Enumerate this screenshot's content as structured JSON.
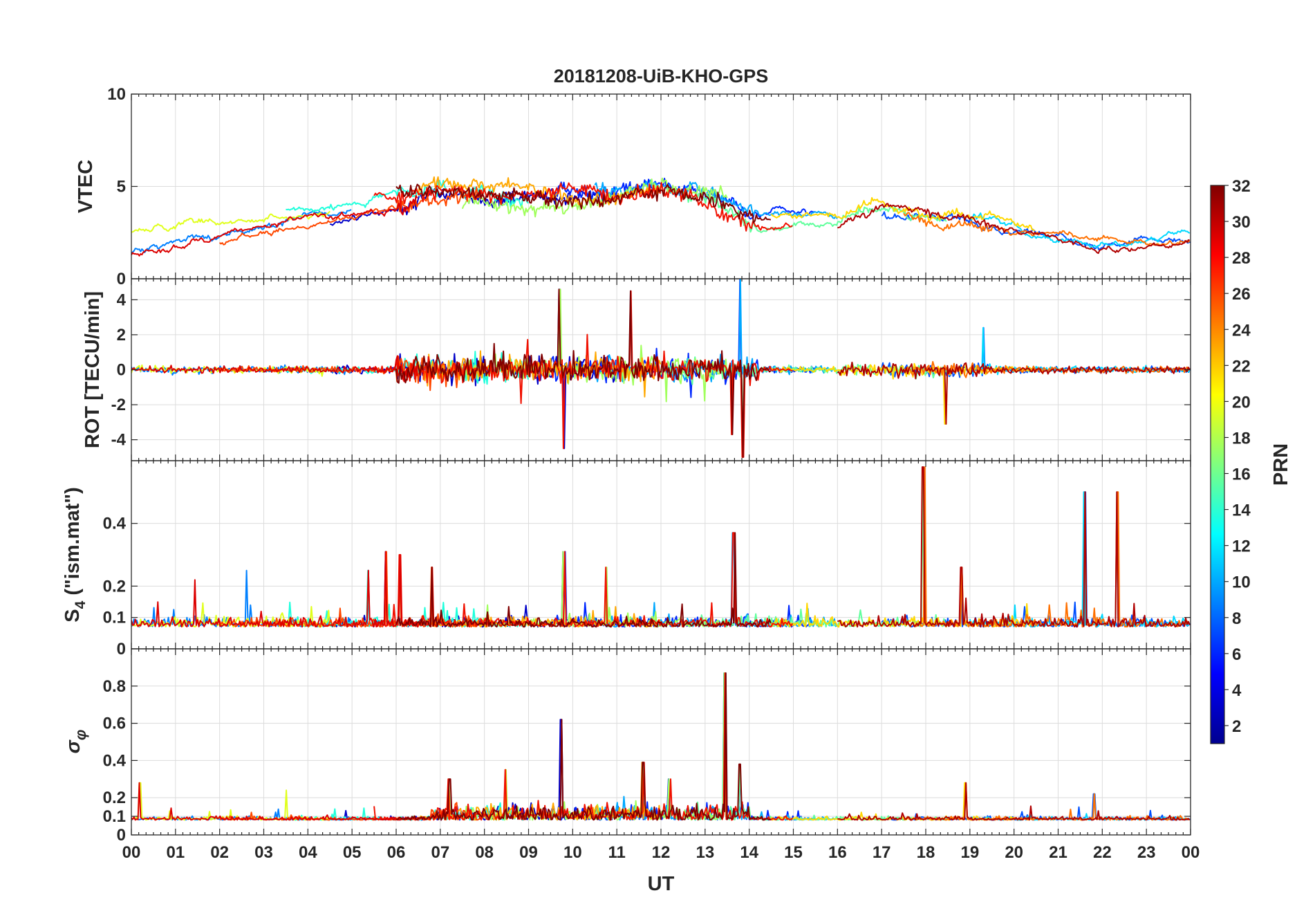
{
  "chart_data": {
    "type": "line",
    "title": "20181208-UiB-KHO-GPS",
    "xlabel": "UT",
    "x_range_hours": [
      0,
      24
    ],
    "x_tick_labels": [
      "00",
      "01",
      "02",
      "03",
      "04",
      "05",
      "06",
      "07",
      "08",
      "09",
      "10",
      "11",
      "12",
      "13",
      "14",
      "15",
      "16",
      "17",
      "18",
      "19",
      "20",
      "21",
      "22",
      "23",
      "00"
    ],
    "panels": [
      {
        "id": "vtec",
        "ylabel": "VTEC",
        "ylim": [
          0,
          10
        ],
        "y_ticks": [
          0,
          5,
          10
        ],
        "y_tick_labels": [
          "0",
          "5",
          "10"
        ],
        "grid": true,
        "description": "VTEC per satellite, typically 1-8 TECU, elevated between 06 and 14 UT",
        "series_profile_hours": [
          0,
          3,
          5,
          7,
          9,
          11,
          12,
          13,
          14,
          16,
          17,
          18,
          20,
          22,
          24
        ],
        "series_profile_values": [
          2.0,
          3.0,
          3.8,
          4.8,
          4.2,
          4.5,
          5.0,
          4.6,
          3.5,
          3.0,
          4.0,
          3.6,
          2.8,
          2.0,
          2.2
        ]
      },
      {
        "id": "rot",
        "ylabel": "ROT [TECU/min]",
        "ylim": [
          -5.2,
          5.2
        ],
        "y_ticks": [
          -4,
          -2,
          0,
          2,
          4
        ],
        "y_tick_labels": [
          "-4",
          "-2",
          "0",
          "2",
          "4"
        ],
        "grid": true,
        "description": "Rate of TEC, near 0 with bursts up to about +/-5 TECU/min between 06 and 14 UT",
        "peaks": [
          {
            "hour": 9.8,
            "value": -4.5
          },
          {
            "hour": 9.7,
            "value": 4.6
          },
          {
            "hour": 11.3,
            "value": 4.5
          },
          {
            "hour": 13.6,
            "value": -3.7
          },
          {
            "hour": 13.8,
            "value": 5.2
          },
          {
            "hour": 13.85,
            "value": -5.0
          },
          {
            "hour": 18.45,
            "value": -3.1
          },
          {
            "hour": 19.3,
            "value": 2.4
          }
        ]
      },
      {
        "id": "s4",
        "ylabel": "S4 (\"ism.mat\")",
        "ylabel_main": "S",
        "ylabel_sub": "4",
        "ylabel_rest": " (\"ism.mat\")",
        "ylim": [
          0,
          0.6
        ],
        "y_ticks": [
          0,
          0.1,
          0.2,
          0.4
        ],
        "y_tick_labels": [
          "0",
          "0.1",
          "0.2",
          "0.4"
        ],
        "grid": true,
        "description": "Amplitude scintillation index, baseline 0.04-0.12 with spikes",
        "baseline": 0.07,
        "peaks": [
          {
            "hour": 1.45,
            "value": 0.22
          },
          {
            "hour": 2.6,
            "value": 0.25
          },
          {
            "hour": 5.35,
            "value": 0.25
          },
          {
            "hour": 5.75,
            "value": 0.31
          },
          {
            "hour": 6.1,
            "value": 0.3
          },
          {
            "hour": 6.8,
            "value": 0.26
          },
          {
            "hour": 9.8,
            "value": 0.31
          },
          {
            "hour": 10.75,
            "value": 0.26
          },
          {
            "hour": 13.65,
            "value": 0.37
          },
          {
            "hour": 17.95,
            "value": 0.58
          },
          {
            "hour": 18.8,
            "value": 0.26
          },
          {
            "hour": 21.6,
            "value": 0.5
          },
          {
            "hour": 22.35,
            "value": 0.5
          }
        ]
      },
      {
        "id": "sigma_phi",
        "ylabel": "σφ",
        "ylabel_main": "σ",
        "ylabel_sub": "φ",
        "ylim": [
          0,
          1.0
        ],
        "y_ticks": [
          0,
          0.1,
          0.2,
          0.4,
          0.6,
          0.8
        ],
        "y_tick_labels": [
          "0",
          "0.1",
          "0.2",
          "0.4",
          "0.6",
          "0.8"
        ],
        "grid": true,
        "description": "Phase scintillation index, baseline ~0.08 with enhancement 07-14 UT",
        "baseline": 0.08,
        "peaks": [
          {
            "hour": 0.2,
            "value": 0.28
          },
          {
            "hour": 3.5,
            "value": 0.24
          },
          {
            "hour": 7.2,
            "value": 0.3
          },
          {
            "hour": 8.5,
            "value": 0.35
          },
          {
            "hour": 9.75,
            "value": 0.62
          },
          {
            "hour": 11.6,
            "value": 0.39
          },
          {
            "hour": 12.2,
            "value": 0.3
          },
          {
            "hour": 13.45,
            "value": 0.87
          },
          {
            "hour": 13.8,
            "value": 0.38
          },
          {
            "hour": 18.9,
            "value": 0.28
          },
          {
            "hour": 21.8,
            "value": 0.22
          }
        ]
      }
    ],
    "colorbar": {
      "label": "PRN",
      "range": [
        1,
        32
      ],
      "ticks": [
        2,
        4,
        6,
        8,
        10,
        12,
        14,
        16,
        18,
        20,
        22,
        24,
        26,
        28,
        30,
        32
      ],
      "tick_labels": [
        "2",
        "4",
        "6",
        "8",
        "10",
        "12",
        "14",
        "16",
        "18",
        "20",
        "22",
        "24",
        "26",
        "28",
        "30",
        "32"
      ],
      "colormap": "jet"
    },
    "prn_series": [
      {
        "prn": 2,
        "color": "#0000c8",
        "start": 4.5,
        "end": 11.0
      },
      {
        "prn": 5,
        "color": "#0028ff",
        "start": 9.5,
        "end": 15.5
      },
      {
        "prn": 6,
        "color": "#0050ff",
        "start": 17.0,
        "end": 24.0
      },
      {
        "prn": 8,
        "color": "#0080ff",
        "start": 0.0,
        "end": 5.0
      },
      {
        "prn": 10,
        "color": "#00a8ff",
        "start": 10.5,
        "end": 16.0
      },
      {
        "prn": 12,
        "color": "#00d8ff",
        "start": 19.0,
        "end": 24.0
      },
      {
        "prn": 13,
        "color": "#20ffdc",
        "start": 3.5,
        "end": 9.0
      },
      {
        "prn": 15,
        "color": "#60ff9c",
        "start": 12.5,
        "end": 18.5
      },
      {
        "prn": 17,
        "color": "#a0ff5c",
        "start": 7.5,
        "end": 13.5
      },
      {
        "prn": 19,
        "color": "#e0ff1c",
        "start": 0.0,
        "end": 4.5
      },
      {
        "prn": 21,
        "color": "#ffd800",
        "start": 14.5,
        "end": 20.5
      },
      {
        "prn": 23,
        "color": "#ffa800",
        "start": 6.5,
        "end": 12.0
      },
      {
        "prn": 25,
        "color": "#ff7000",
        "start": 17.5,
        "end": 24.0
      },
      {
        "prn": 26,
        "color": "#ff4800",
        "start": 2.0,
        "end": 8.0
      },
      {
        "prn": 28,
        "color": "#f01000",
        "start": 5.5,
        "end": 15.0
      },
      {
        "prn": 29,
        "color": "#dc0000",
        "start": 0.0,
        "end": 6.5
      },
      {
        "prn": 31,
        "color": "#b00000",
        "start": 16.0,
        "end": 24.0
      },
      {
        "prn": 32,
        "color": "#800000",
        "start": 6.0,
        "end": 14.5
      }
    ]
  }
}
